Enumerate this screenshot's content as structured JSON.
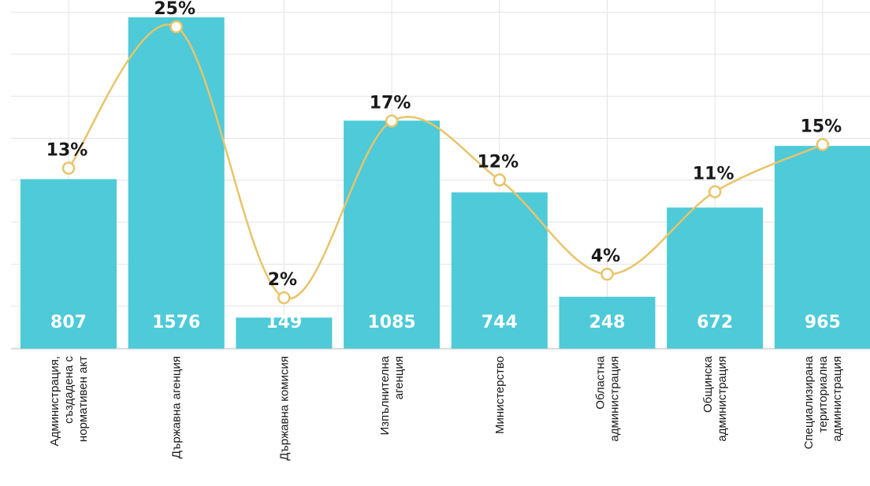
{
  "chart_data": {
    "type": "bar",
    "categories": [
      [
        "Администрация,",
        "създадена с",
        "нормативен акт"
      ],
      [
        "Държавна агенция"
      ],
      [
        "Държавна комисия"
      ],
      [
        "Изпълнителна",
        "агенция"
      ],
      [
        "Министерство"
      ],
      [
        "Областна",
        "администрация"
      ],
      [
        "Общинска",
        "администрация"
      ],
      [
        "Специализирана",
        "териториална",
        "администрация"
      ]
    ],
    "series": [
      {
        "type": "bar",
        "values": [
          807,
          1576,
          149,
          1085,
          744,
          248,
          672,
          965
        ]
      },
      {
        "type": "line",
        "values": [
          13,
          25,
          2,
          17,
          12,
          4,
          11,
          15
        ],
        "labels": [
          "13%",
          "25%",
          "2%",
          "17%",
          "12%",
          "4%",
          "11%",
          "15%"
        ]
      }
    ],
    "value_labels": [
      "807",
      "1576",
      "149",
      "1085",
      "744",
      "248",
      "672",
      "965"
    ],
    "ylim": [
      0,
      1576
    ],
    "grid": true,
    "colors": {
      "bar": "#4ecad8",
      "line": "#e8c46a",
      "grid": "#e3e3e3"
    }
  }
}
